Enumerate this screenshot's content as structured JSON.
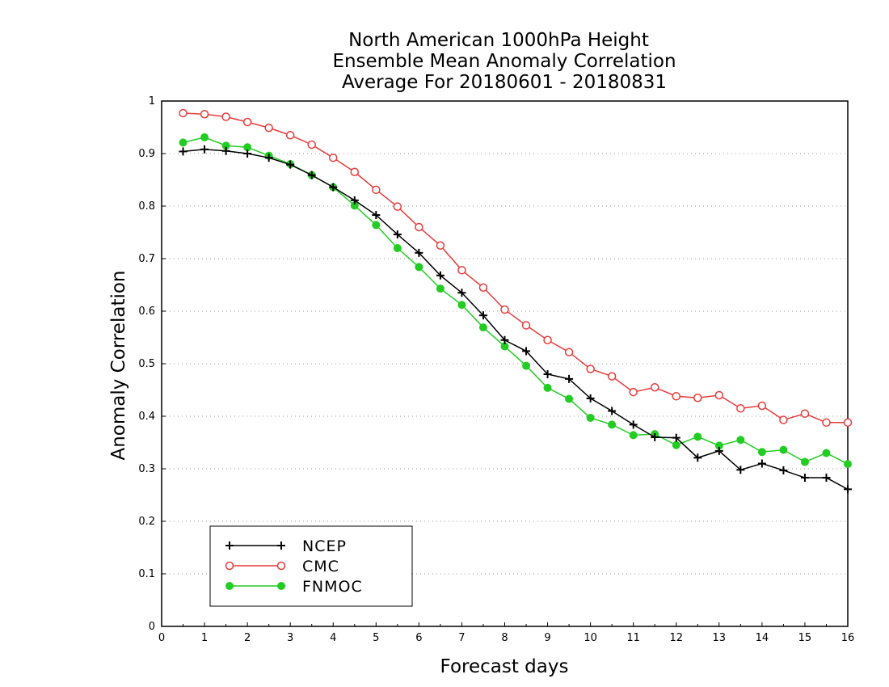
{
  "chart_data": {
    "type": "line",
    "title": [
      "North American 1000hPa Height",
      "Ensemble Mean Anomaly Correlation",
      "Average For 20180601 - 20180831"
    ],
    "xlabel": "Forecast days",
    "ylabel": "Anomaly Correlation",
    "xlim": [
      0,
      16
    ],
    "ylim": [
      0,
      1
    ],
    "xticks": [
      "0",
      "1",
      "2",
      "3",
      "4",
      "5",
      "6",
      "7",
      "8",
      "9",
      "10",
      "11",
      "12",
      "13",
      "14",
      "15",
      "16"
    ],
    "yticks": [
      "0",
      "0.1",
      "0.2",
      "0.3",
      "0.4",
      "0.5",
      "0.6",
      "0.7",
      "0.8",
      "0.9",
      "1"
    ],
    "grid": "dotted horizontal",
    "legend_position": "bottom-left",
    "x": [
      0.5,
      1,
      1.5,
      2,
      2.5,
      3,
      3.5,
      4,
      4.5,
      5,
      5.5,
      6,
      6.5,
      7,
      7.5,
      8,
      8.5,
      9,
      9.5,
      10,
      10.5,
      11,
      11.5,
      12,
      12.5,
      13,
      13.5,
      14,
      14.5,
      15,
      15.5,
      16
    ],
    "series": [
      {
        "name": "NCEP",
        "color": "#000000",
        "marker": "plus",
        "values": [
          0.904,
          0.908,
          0.905,
          0.9,
          0.892,
          0.879,
          0.859,
          0.836,
          0.811,
          0.783,
          0.746,
          0.711,
          0.668,
          0.635,
          0.592,
          0.545,
          0.524,
          0.48,
          0.471,
          0.434,
          0.41,
          0.384,
          0.36,
          0.359,
          0.321,
          0.334,
          0.298,
          0.31,
          0.297,
          0.283,
          0.283,
          0.261
        ]
      },
      {
        "name": "CMC",
        "color": "#e83a3a",
        "marker": "open-circle",
        "values": [
          0.977,
          0.975,
          0.97,
          0.96,
          0.949,
          0.935,
          0.917,
          0.892,
          0.865,
          0.831,
          0.799,
          0.76,
          0.725,
          0.678,
          0.645,
          0.603,
          0.573,
          0.545,
          0.522,
          0.49,
          0.476,
          0.446,
          0.455,
          0.438,
          0.435,
          0.44,
          0.415,
          0.42,
          0.393,
          0.405,
          0.388,
          0.388
        ]
      },
      {
        "name": "FNMOC",
        "color": "#22cc22",
        "marker": "filled-circle",
        "values": [
          0.921,
          0.931,
          0.915,
          0.912,
          0.896,
          0.88,
          0.859,
          0.836,
          0.801,
          0.764,
          0.72,
          0.684,
          0.643,
          0.612,
          0.569,
          0.533,
          0.496,
          0.454,
          0.433,
          0.397,
          0.384,
          0.364,
          0.366,
          0.345,
          0.361,
          0.344,
          0.355,
          0.332,
          0.336,
          0.313,
          0.33,
          0.309
        ]
      }
    ]
  }
}
